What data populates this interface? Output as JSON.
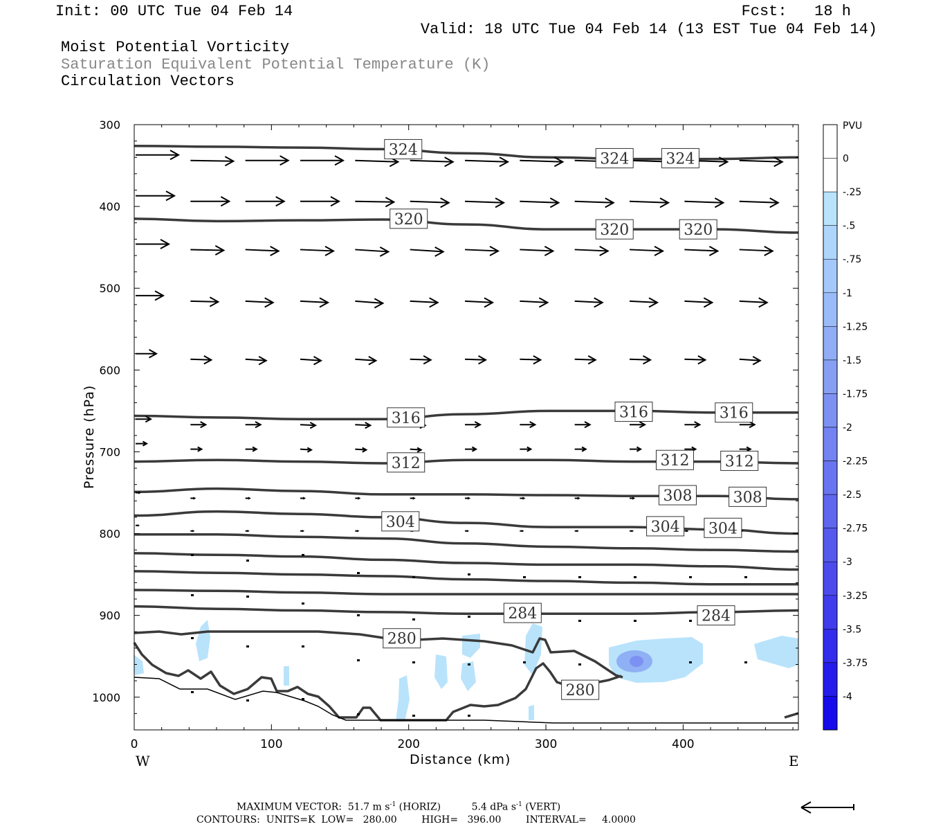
{
  "header": {
    "init": "Init: 00 UTC Tue 04 Feb 14",
    "fcst": "Fcst:   18 h",
    "valid": "Valid: 18 UTC Tue 04 Feb 14 (13 EST Tue 04 Feb 14)",
    "fields": [
      "Moist Potential Vorticity",
      "Saturation Equivalent Potential Temperature (K)",
      "Circulation Vectors"
    ]
  },
  "footer": {
    "max_vector": "MAXIMUM VECTOR:  51.7 m s",
    "max_vector_unit_horiz": "-1",
    "max_vector_horiz": " (HORIZ)",
    "max_vector_vert_val": "5.4 dPa s",
    "max_vector_unit_vert": "-1",
    "max_vector_vert": " (VERT)",
    "contours": "CONTOURS:  UNITS=K  LOW=   280.00        HIGH=   396.00        INTERVAL=     4.0000"
  },
  "colors": {
    "contour": "#3a3a3a",
    "pv_light": "#b9e3fb",
    "pv_mid": "#8fb0f4",
    "axis": "#000000"
  },
  "chart_data": {
    "type": "cross-section",
    "xlabel": "Distance (km)",
    "ylabel": "Pressure (hPa)",
    "x_ticks": [
      0,
      100,
      200,
      300,
      400
    ],
    "y_ticks": [
      300,
      400,
      500,
      600,
      700,
      800,
      900,
      1000
    ],
    "xlim": [
      0,
      484
    ],
    "ylim": [
      300,
      1040
    ],
    "left_end_label": "W",
    "right_end_label": "E",
    "colorbar": {
      "title": "PVU",
      "labels": [
        "0",
        "-.25",
        "-.5",
        "-.75",
        "-1",
        "-1.25",
        "-1.5",
        "-1.75",
        "-2",
        "-2.25",
        "-2.5",
        "-2.75",
        "-3",
        "-3.25",
        "-3.5",
        "-3.75",
        "-4"
      ],
      "colors": [
        "#ffffff",
        "#ffffff",
        "#b9e3fb",
        "#aed6fb",
        "#a4c8f9",
        "#9abbf7",
        "#90adf5",
        "#879ff3",
        "#7d91f2",
        "#7383f1",
        "#6975f0",
        "#5f67ee",
        "#5559ed",
        "#4b4bec",
        "#3f3cec",
        "#322cec",
        "#241ceb",
        "#150beb"
      ]
    },
    "contour_labels": [
      {
        "value": "324",
        "x": 196,
        "p": 330
      },
      {
        "value": "324",
        "x": 350,
        "p": 341
      },
      {
        "value": "324",
        "x": 398,
        "p": 341
      },
      {
        "value": "320",
        "x": 200,
        "p": 415
      },
      {
        "value": "320",
        "x": 350,
        "p": 428
      },
      {
        "value": "320",
        "x": 411,
        "p": 428
      },
      {
        "value": "316",
        "x": 198,
        "p": 658
      },
      {
        "value": "316",
        "x": 364,
        "p": 651
      },
      {
        "value": "316",
        "x": 437,
        "p": 652
      },
      {
        "value": "312",
        "x": 198,
        "p": 713
      },
      {
        "value": "312",
        "x": 394,
        "p": 710
      },
      {
        "value": "312",
        "x": 441,
        "p": 711
      },
      {
        "value": "308",
        "x": 396,
        "p": 753
      },
      {
        "value": "308",
        "x": 447,
        "p": 755
      },
      {
        "value": "304",
        "x": 194,
        "p": 785
      },
      {
        "value": "304",
        "x": 387,
        "p": 791
      },
      {
        "value": "304",
        "x": 429,
        "p": 793
      },
      {
        "value": "284",
        "x": 283,
        "p": 897
      },
      {
        "value": "284",
        "x": 424,
        "p": 900
      },
      {
        "value": "280",
        "x": 195,
        "p": 928
      },
      {
        "value": "280",
        "x": 325,
        "p": 991
      }
    ],
    "isentropes": [
      {
        "p": [
          326,
          327,
          328,
          330,
          335,
          340,
          342,
          342,
          340
        ]
      },
      {
        "p": [
          415,
          418,
          417,
          416,
          422,
          428,
          428,
          428,
          432
        ]
      },
      {
        "p": [
          656,
          658,
          660,
          660,
          654,
          650,
          650,
          652,
          652
        ]
      },
      {
        "p": [
          712,
          710,
          712,
          714,
          710,
          710,
          712,
          712,
          714
        ]
      },
      {
        "p": [
          749,
          745,
          748,
          752,
          752,
          753,
          754,
          754,
          758
        ]
      },
      {
        "p": [
          778,
          773,
          776,
          780,
          787,
          792,
          792,
          795,
          800
        ]
      },
      {
        "p": [
          801,
          801,
          804,
          806,
          812,
          816,
          818,
          820,
          822
        ]
      },
      {
        "p": [
          824,
          826,
          828,
          832,
          836,
          838,
          838,
          840,
          844
        ]
      },
      {
        "p": [
          846,
          848,
          850,
          852,
          856,
          858,
          860,
          862,
          862
        ]
      },
      {
        "p": [
          869,
          870,
          872,
          874,
          874,
          874,
          874,
          874,
          874
        ]
      },
      {
        "p": [
          889,
          892,
          894,
          896,
          898,
          898,
          898,
          896,
          894
        ]
      }
    ],
    "vector_rows_p": [
      337,
      387,
      446,
      509,
      580,
      660,
      690,
      750,
      790
    ]
  }
}
